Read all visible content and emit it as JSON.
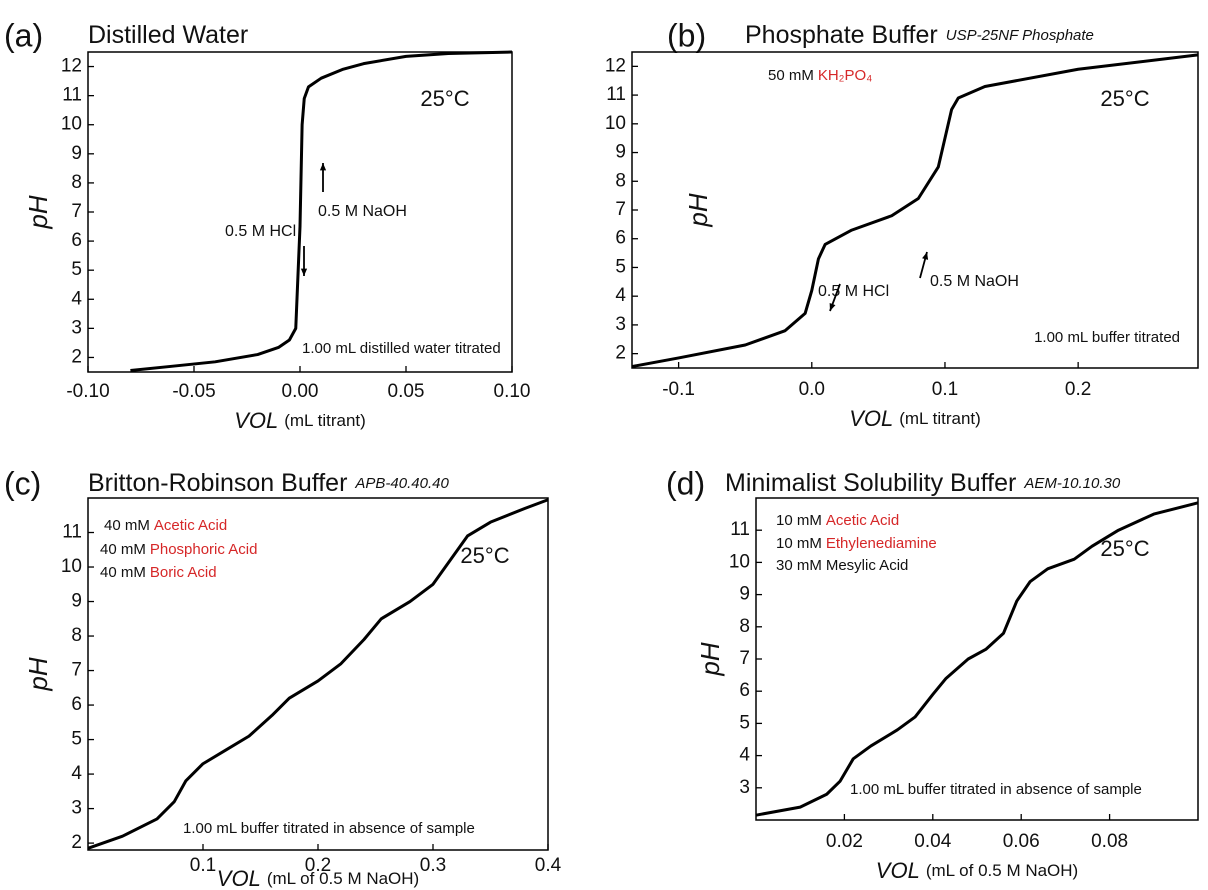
{
  "chart_data": [
    {
      "type": "line",
      "panel": "(a)",
      "title": "Distilled Water",
      "x_label": "VOL",
      "x_unit": "(mL titrant)",
      "y_label": "pH",
      "x": [
        -0.08,
        -0.06,
        -0.04,
        -0.02,
        -0.01,
        -0.005,
        -0.002,
        0,
        0.001,
        0.002,
        0.004,
        0.01,
        0.02,
        0.03,
        0.05,
        0.07,
        0.1
      ],
      "values": [
        1.55,
        1.7,
        1.85,
        2.1,
        2.35,
        2.6,
        3.0,
        6.5,
        10.0,
        10.9,
        11.3,
        11.6,
        11.9,
        12.1,
        12.35,
        12.45,
        12.5
      ],
      "color": "#000000",
      "xlim": [
        -0.1,
        0.1
      ],
      "ylim": [
        1.5,
        12.5
      ],
      "xticks": [
        {
          "value": -0.1,
          "label": "-0.10"
        },
        -0.05,
        {
          "value": 0,
          "label": "0.00"
        },
        0.05,
        {
          "value": 0.1,
          "label": "0.10"
        }
      ],
      "yticks": [
        2,
        3,
        4,
        5,
        6,
        7,
        8,
        9,
        10,
        11,
        12
      ],
      "annotations": [
        "0.5 M HCl",
        "0.5 M NaOH"
      ],
      "condition": "25°C",
      "note": "1.00 mL distilled water titrated"
    },
    {
      "type": "line",
      "panel": "(b)",
      "title": "Phosphate Buffer",
      "subtitle": "USP-25NF Phosphate",
      "x_label": "VOL",
      "x_unit": "(mL titrant)",
      "y_label": "pH",
      "x": [
        -0.135,
        -0.1,
        -0.05,
        -0.02,
        -0.005,
        0,
        0.005,
        0.01,
        0.03,
        0.06,
        0.08,
        0.095,
        0.1,
        0.105,
        0.11,
        0.13,
        0.2,
        0.29
      ],
      "values": [
        1.55,
        1.85,
        2.3,
        2.8,
        3.4,
        4.2,
        5.3,
        5.8,
        6.3,
        6.8,
        7.4,
        8.5,
        9.5,
        10.5,
        10.9,
        11.3,
        11.9,
        12.4
      ],
      "color": "#000000",
      "xlim": [
        -0.135,
        0.29
      ],
      "ylim": [
        1.5,
        12.5
      ],
      "xticks": [
        -0.1,
        {
          "value": 0,
          "label": "0.0"
        },
        0.1,
        0.2
      ],
      "yticks": [
        2,
        3,
        4,
        5,
        6,
        7,
        8,
        9,
        10,
        11,
        12
      ],
      "components": [
        {
          "amount": "50 mM",
          "name": "KH₂PO₄",
          "color": "#d62728"
        }
      ],
      "annotations": [
        "0.5 M HCl",
        "0.5 M NaOH"
      ],
      "condition": "25°C",
      "note": "1.00 mL buffer titrated"
    },
    {
      "type": "line",
      "panel": "(c)",
      "title": "Britton-Robinson Buffer",
      "subtitle": "APB-40.40.40",
      "x_label": "VOL",
      "x_unit": "(mL of 0.5 M NaOH)",
      "y_label": "pH",
      "x": [
        0,
        0.03,
        0.06,
        0.075,
        0.085,
        0.1,
        0.12,
        0.14,
        0.16,
        0.175,
        0.2,
        0.22,
        0.24,
        0.255,
        0.28,
        0.3,
        0.315,
        0.33,
        0.35,
        0.38,
        0.4
      ],
      "values": [
        1.85,
        2.2,
        2.7,
        3.2,
        3.8,
        4.3,
        4.7,
        5.1,
        5.7,
        6.2,
        6.7,
        7.2,
        7.9,
        8.5,
        9.0,
        9.5,
        10.2,
        10.9,
        11.3,
        11.7,
        11.95
      ],
      "color": "#000000",
      "xlim": [
        0,
        0.4
      ],
      "ylim": [
        1.8,
        12
      ],
      "xticks": [
        0.1,
        0.2,
        0.3,
        0.4
      ],
      "yticks": [
        2,
        3,
        4,
        5,
        6,
        7,
        8,
        9,
        10,
        11
      ],
      "components": [
        {
          "amount": "40 mM",
          "name": "Acetic Acid",
          "color": "#d62728"
        },
        {
          "amount": "40 mM",
          "name": "Phosphoric Acid",
          "color": "#d62728"
        },
        {
          "amount": "40 mM",
          "name": "Boric Acid",
          "color": "#d62728"
        }
      ],
      "condition": "25°C",
      "note": "1.00 mL buffer titrated in absence of sample"
    },
    {
      "type": "line",
      "panel": "(d)",
      "title": "Minimalist Solubility Buffer",
      "subtitle": "AEM-10.10.30",
      "x_label": "VOL",
      "x_unit": "(mL of 0.5 M NaOH)",
      "y_label": "pH",
      "x": [
        0,
        0.01,
        0.016,
        0.019,
        0.022,
        0.026,
        0.032,
        0.036,
        0.04,
        0.043,
        0.048,
        0.052,
        0.056,
        0.059,
        0.062,
        0.066,
        0.072,
        0.076,
        0.082,
        0.09,
        0.1
      ],
      "values": [
        2.15,
        2.4,
        2.8,
        3.2,
        3.9,
        4.3,
        4.8,
        5.2,
        5.9,
        6.4,
        7.0,
        7.3,
        7.8,
        8.8,
        9.4,
        9.8,
        10.1,
        10.5,
        11.0,
        11.5,
        11.85
      ],
      "color": "#000000",
      "xlim": [
        0,
        0.1
      ],
      "ylim": [
        2,
        12
      ],
      "xticks": [
        0.02,
        0.04,
        0.06,
        0.08
      ],
      "yticks": [
        3,
        4,
        5,
        6,
        7,
        8,
        9,
        10,
        11
      ],
      "components": [
        {
          "amount": "10 mM",
          "name": "Acetic Acid",
          "color": "#d62728"
        },
        {
          "amount": "10 mM",
          "name": "Ethylenediamine",
          "color": "#d62728"
        },
        {
          "amount": "30 mM",
          "name": "Mesylic Acid",
          "color": "#111111"
        }
      ],
      "condition": "25°C",
      "note": "1.00 mL buffer titrated in absence of sample"
    }
  ]
}
